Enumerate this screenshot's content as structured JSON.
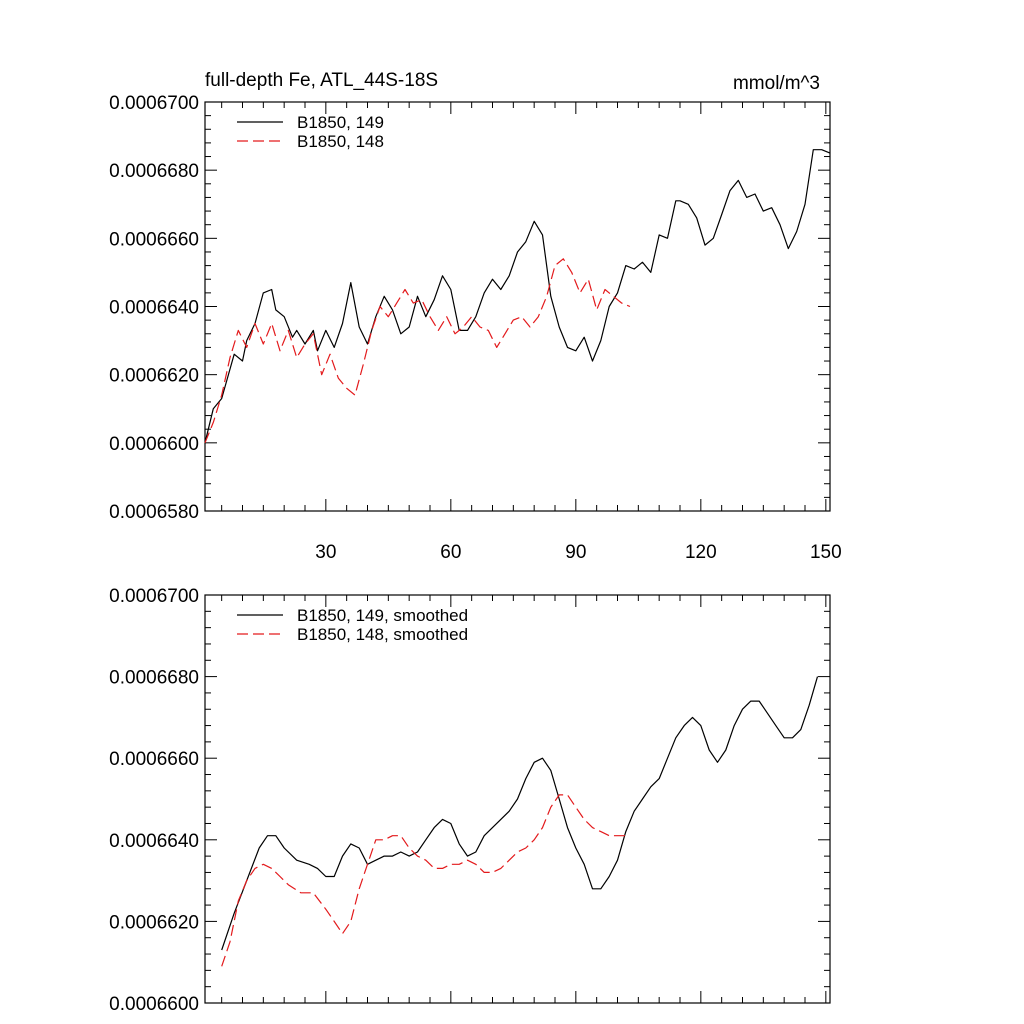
{
  "chart_data": [
    {
      "type": "line",
      "title": "full-depth Fe, ATL_44S-18S",
      "units": "mmol/m^3",
      "xlim": [
        1,
        151
      ],
      "ylim": [
        0.000658,
        0.00067
      ],
      "xticks": [
        30,
        60,
        90,
        120,
        150
      ],
      "xtick_labels": [
        "30",
        "60",
        "90",
        "120",
        "150"
      ],
      "yticks": [
        0.000658,
        0.00066,
        0.000662,
        0.000664,
        0.000666,
        0.000668,
        0.00067
      ],
      "ytick_labels": [
        "0.0006580",
        "0.0006600",
        "0.0006620",
        "0.0006640",
        "0.0006660",
        "0.0006680",
        "0.0006700"
      ],
      "legend_position": "top-left",
      "series": [
        {
          "name": "B1850, 149",
          "color": "#000000",
          "style": "solid",
          "x": [
            1,
            3,
            5,
            8,
            10,
            11,
            13,
            15,
            17,
            18,
            20,
            22,
            23,
            25,
            27,
            28,
            30,
            32,
            34,
            36,
            38,
            40,
            42,
            44,
            46,
            48,
            50,
            52,
            54,
            56,
            58,
            60,
            62,
            64,
            66,
            68,
            70,
            72,
            74,
            76,
            78,
            80,
            82,
            84,
            86,
            88,
            90,
            92,
            94,
            96,
            98,
            100,
            102,
            104,
            106,
            108,
            110,
            112,
            114,
            115,
            117,
            119,
            121,
            123,
            125,
            127,
            129,
            131,
            133,
            135,
            137,
            139,
            141,
            143,
            145,
            147,
            149,
            151
          ],
          "y": [
            0.00066,
            0.000661,
            0.0006613,
            0.0006626,
            0.0006624,
            0.000663,
            0.0006635,
            0.0006644,
            0.0006645,
            0.0006639,
            0.0006637,
            0.0006631,
            0.0006633,
            0.0006629,
            0.0006633,
            0.0006627,
            0.0006633,
            0.0006628,
            0.0006635,
            0.0006647,
            0.0006634,
            0.0006629,
            0.0006637,
            0.0006643,
            0.0006639,
            0.0006632,
            0.0006634,
            0.0006643,
            0.0006637,
            0.0006642,
            0.0006649,
            0.0006645,
            0.0006633,
            0.0006633,
            0.0006637,
            0.0006644,
            0.0006648,
            0.0006645,
            0.0006649,
            0.0006656,
            0.0006659,
            0.0006665,
            0.0006661,
            0.0006643,
            0.0006634,
            0.0006628,
            0.0006627,
            0.0006631,
            0.0006624,
            0.000663,
            0.000664,
            0.0006644,
            0.0006652,
            0.0006651,
            0.0006653,
            0.000665,
            0.0006661,
            0.000666,
            0.0006671,
            0.0006671,
            0.000667,
            0.0006666,
            0.0006658,
            0.000666,
            0.0006667,
            0.0006674,
            0.0006677,
            0.0006672,
            0.0006673,
            0.0006668,
            0.0006669,
            0.0006664,
            0.0006657,
            0.0006662,
            0.000667,
            0.0006686,
            0.0006686,
            0.0006685
          ]
        },
        {
          "name": "B1850, 148",
          "color": "#e31a1c",
          "style": "dashed",
          "x": [
            1,
            3,
            5,
            7,
            9,
            11,
            13,
            15,
            17,
            19,
            21,
            23,
            25,
            27,
            29,
            31,
            33,
            35,
            37,
            39,
            41,
            43,
            45,
            47,
            49,
            51,
            53,
            55,
            57,
            59,
            61,
            63,
            65,
            67,
            69,
            71,
            73,
            75,
            77,
            79,
            81,
            83,
            85,
            87,
            89,
            91,
            93,
            95,
            97,
            99,
            101,
            103
          ],
          "y": [
            0.00066,
            0.0006606,
            0.0006614,
            0.0006625,
            0.0006633,
            0.0006628,
            0.0006635,
            0.0006629,
            0.0006635,
            0.0006627,
            0.0006633,
            0.0006625,
            0.0006629,
            0.0006632,
            0.000662,
            0.0006626,
            0.0006619,
            0.0006616,
            0.0006614,
            0.0006623,
            0.0006633,
            0.000664,
            0.0006637,
            0.0006641,
            0.0006645,
            0.0006641,
            0.0006642,
            0.0006637,
            0.0006633,
            0.0006637,
            0.0006632,
            0.0006634,
            0.0006637,
            0.0006634,
            0.0006633,
            0.0006628,
            0.0006632,
            0.0006636,
            0.0006637,
            0.0006634,
            0.0006637,
            0.0006643,
            0.0006652,
            0.0006654,
            0.000665,
            0.0006644,
            0.0006648,
            0.0006639,
            0.0006645,
            0.0006643,
            0.0006641,
            0.000664
          ]
        }
      ]
    },
    {
      "type": "line",
      "title": "",
      "xlim": [
        1,
        151
      ],
      "ylim": [
        0.00066,
        0.00067
      ],
      "xticks": [
        30,
        60,
        90,
        120,
        150
      ],
      "xtick_labels": [],
      "yticks": [
        0.00066,
        0.000662,
        0.000664,
        0.000666,
        0.000668,
        0.00067
      ],
      "ytick_labels": [
        "0.0006600",
        "0.0006620",
        "0.0006640",
        "0.0006660",
        "0.0006680",
        "0.0006700"
      ],
      "legend_position": "top-left",
      "series": [
        {
          "name": "B1850, 149, smoothed",
          "color": "#000000",
          "style": "solid",
          "x": [
            5,
            8,
            11,
            14,
            16,
            18,
            20,
            23,
            26,
            28,
            30,
            32,
            34,
            36,
            38,
            40,
            42,
            44,
            46,
            48,
            50,
            52,
            54,
            56,
            58,
            60,
            62,
            64,
            66,
            68,
            70,
            72,
            74,
            76,
            78,
            80,
            82,
            84,
            86,
            88,
            90,
            92,
            94,
            96,
            98,
            100,
            102,
            104,
            106,
            108,
            110,
            112,
            114,
            116,
            118,
            120,
            122,
            124,
            126,
            128,
            130,
            132,
            134,
            136,
            138,
            140,
            142,
            144,
            146,
            148
          ],
          "y": [
            0.0006613,
            0.0006622,
            0.000663,
            0.0006638,
            0.0006641,
            0.0006641,
            0.0006638,
            0.0006635,
            0.0006634,
            0.0006633,
            0.0006631,
            0.0006631,
            0.0006636,
            0.0006639,
            0.0006638,
            0.0006634,
            0.0006635,
            0.0006636,
            0.0006636,
            0.0006637,
            0.0006636,
            0.0006637,
            0.000664,
            0.0006643,
            0.0006645,
            0.0006644,
            0.0006639,
            0.0006636,
            0.0006637,
            0.0006641,
            0.0006643,
            0.0006645,
            0.0006647,
            0.000665,
            0.0006655,
            0.0006659,
            0.000666,
            0.0006657,
            0.000665,
            0.0006643,
            0.0006638,
            0.0006634,
            0.0006628,
            0.0006628,
            0.0006631,
            0.0006635,
            0.0006642,
            0.0006647,
            0.000665,
            0.0006653,
            0.0006655,
            0.000666,
            0.0006665,
            0.0006668,
            0.000667,
            0.0006668,
            0.0006662,
            0.0006659,
            0.0006662,
            0.0006668,
            0.0006672,
            0.0006674,
            0.0006674,
            0.0006671,
            0.0006668,
            0.0006665,
            0.0006665,
            0.0006667,
            0.0006673,
            0.000668
          ]
        },
        {
          "name": "B1850, 148, smoothed",
          "color": "#e31a1c",
          "style": "dashed",
          "x": [
            5,
            7,
            9,
            11,
            13,
            15,
            17,
            19,
            21,
            24,
            27,
            30,
            32,
            34,
            36,
            38,
            40,
            42,
            44,
            46,
            48,
            50,
            52,
            54,
            56,
            58,
            60,
            62,
            64,
            66,
            68,
            70,
            72,
            74,
            76,
            78,
            80,
            82,
            84,
            86,
            88,
            90,
            92,
            94,
            96,
            98,
            100,
            102
          ],
          "y": [
            0.0006609,
            0.0006615,
            0.0006625,
            0.000663,
            0.0006633,
            0.0006634,
            0.0006633,
            0.0006631,
            0.0006629,
            0.0006627,
            0.0006627,
            0.0006623,
            0.000662,
            0.0006617,
            0.000662,
            0.0006628,
            0.0006634,
            0.000664,
            0.000664,
            0.0006641,
            0.0006641,
            0.0006638,
            0.0006636,
            0.0006635,
            0.0006633,
            0.0006633,
            0.0006634,
            0.0006634,
            0.0006635,
            0.0006634,
            0.0006632,
            0.0006632,
            0.0006633,
            0.0006635,
            0.0006637,
            0.0006638,
            0.000664,
            0.0006643,
            0.0006648,
            0.0006651,
            0.0006651,
            0.0006648,
            0.0006645,
            0.0006643,
            0.0006642,
            0.0006641,
            0.0006641,
            0.0006641
          ]
        }
      ]
    }
  ]
}
